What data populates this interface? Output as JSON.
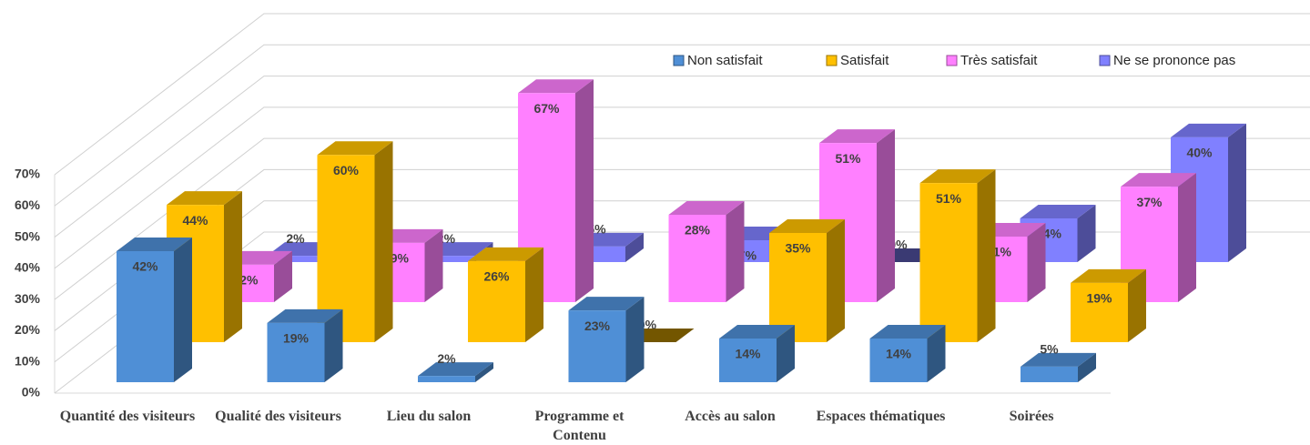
{
  "chart_data": {
    "type": "bar3d",
    "categories": [
      "Quantité des visiteurs",
      "Qualité des visiteurs",
      "Lieu du salon",
      "Programme et Contenu",
      "Accès au salon",
      "Espaces thématiques",
      "Soirées"
    ],
    "series": [
      {
        "name": "Non satisfait",
        "color": "#4f8fd6",
        "values": [
          42,
          19,
          2,
          23,
          14,
          14,
          5
        ],
        "value_labels": [
          "42%",
          "19%",
          "2%",
          "23%",
          "14%",
          "14%",
          "5%"
        ]
      },
      {
        "name": "Satisfait",
        "color": "#ffc000",
        "values": [
          44,
          60,
          26,
          0,
          35,
          51,
          19
        ],
        "value_labels": [
          "44%",
          "60%",
          "26%",
          "0%",
          "35%",
          "51%",
          "19%"
        ]
      },
      {
        "name": "Très satisfait",
        "color": "#ff80ff",
        "values": [
          12,
          19,
          67,
          28,
          51,
          21,
          37
        ],
        "value_labels": [
          "12%",
          "19%",
          "67%",
          "28%",
          "51%",
          "21%",
          "37%"
        ]
      },
      {
        "name": "Ne se prononce pas",
        "color": "#8080ff",
        "values": [
          2,
          2,
          5,
          7,
          0,
          14,
          40
        ],
        "value_labels": [
          "2%",
          "2%",
          "5%",
          "7%",
          "0%",
          "14%",
          "40%"
        ]
      }
    ],
    "ylim": [
      0,
      70
    ],
    "yticks": [
      {
        "value": 0,
        "label": "0%"
      },
      {
        "value": 10,
        "label": "10%"
      },
      {
        "value": 20,
        "label": "20%"
      },
      {
        "value": 30,
        "label": "30%"
      },
      {
        "value": 40,
        "label": "40%"
      },
      {
        "value": 50,
        "label": "50%"
      },
      {
        "value": 60,
        "label": "60%"
      },
      {
        "value": 70,
        "label": "70%"
      }
    ],
    "grid": true,
    "legend": "top-right"
  }
}
